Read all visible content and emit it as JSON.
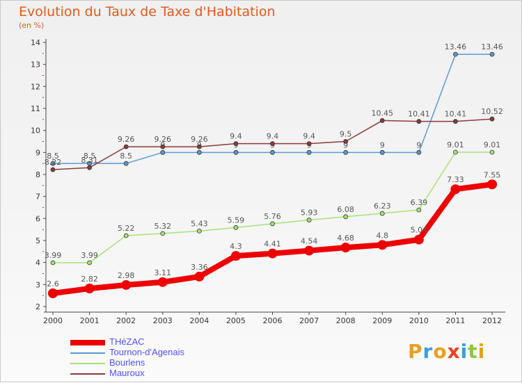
{
  "title": "Evolution du Taux de Taxe d'Habitation",
  "unit_label": "(en %)",
  "logo": [
    {
      "ch": "P",
      "color": "#e8a020"
    },
    {
      "ch": "r",
      "color": "#3aa0d8"
    },
    {
      "ch": "o",
      "color": "#e8a020"
    },
    {
      "ch": "x",
      "color": "#e84020"
    },
    {
      "ch": "i",
      "color": "#3aa0d8"
    },
    {
      "ch": "t",
      "color": "#8cc83c"
    },
    {
      "ch": "i",
      "color": "#e8a020"
    }
  ],
  "chart_data": {
    "type": "line",
    "title": "Evolution du Taux de Taxe d'Habitation",
    "ylabel": "(en %)",
    "ylim": [
      2,
      14
    ],
    "yticks": [
      2,
      3,
      4,
      5,
      6,
      7,
      8,
      9,
      10,
      11,
      12,
      13,
      14
    ],
    "x": [
      "2000",
      "2001",
      "2002",
      "2003",
      "2004",
      "2005",
      "2006",
      "2007",
      "2008",
      "2009",
      "2010",
      "2011",
      "2012"
    ],
    "grid": false,
    "legend": "bottom-left",
    "series": [
      {
        "name": "THéZAC",
        "color": "#ee0000",
        "width": 8,
        "marker": 7,
        "values": [
          2.6,
          2.82,
          2.98,
          3.11,
          3.36,
          4.3,
          4.41,
          4.54,
          4.68,
          4.8,
          5.04,
          7.33,
          7.55
        ],
        "labels": [
          "2.6",
          "2.82",
          "2.98",
          "3.11",
          "3.36",
          "4.3",
          "4.41",
          "4.54",
          "4.68",
          "4.8",
          "5.04",
          "7.33",
          "7.55"
        ]
      },
      {
        "name": "Tournon-d'Agenais",
        "color": "#5a9ad2",
        "width": 1.5,
        "marker": 3,
        "values": [
          8.5,
          8.5,
          8.5,
          9,
          9,
          9,
          9,
          9,
          9,
          9,
          9,
          13.46,
          13.46
        ],
        "labels": [
          "8.5",
          "8.5",
          "8.5",
          "9",
          "9",
          "9",
          "9",
          "9",
          "9",
          "9",
          "9",
          "13.46",
          "13.46"
        ]
      },
      {
        "name": "Bourlens",
        "color": "#a8e07a",
        "width": 1.5,
        "marker": 3,
        "values": [
          3.99,
          3.99,
          5.22,
          5.32,
          5.43,
          5.59,
          5.76,
          5.93,
          6.08,
          6.23,
          6.39,
          9.01,
          9.01
        ],
        "labels": [
          "3.99",
          "3.99",
          "5.22",
          "5.32",
          "5.43",
          "5.59",
          "5.76",
          "5.93",
          "6.08",
          "6.23",
          "6.39",
          "9.01",
          "9.01"
        ]
      },
      {
        "name": "Mauroux",
        "color": "#8b3a3a",
        "width": 1.5,
        "marker": 3,
        "values": [
          8.22,
          8.31,
          9.26,
          9.26,
          9.26,
          9.4,
          9.4,
          9.4,
          9.5,
          10.45,
          10.41,
          10.41,
          10.52
        ],
        "labels": [
          "8.22",
          "8.31",
          "9.26",
          "9.26",
          "9.26",
          "9.4",
          "9.4",
          "9.4",
          "9.5",
          "10.45",
          "10.41",
          "10.41",
          "10.52"
        ]
      }
    ]
  }
}
